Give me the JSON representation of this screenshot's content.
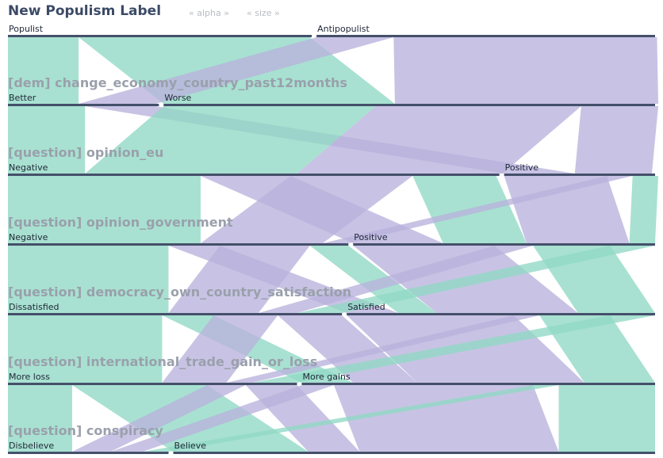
{
  "header": {
    "title": "New Populism Label",
    "sort_alpha": "« alpha »",
    "sort_size": "« size »"
  },
  "chart_data": {
    "type": "parallel_sets",
    "colors": {
      "Populist": "#8fd9c4",
      "Antipopulist": "#b9b2dc"
    },
    "dimensions": [
      {
        "name": "New Populism Label",
        "categories": [
          {
            "label": "Populist",
            "share": 0.473
          },
          {
            "label": "Antipopulist",
            "share": 0.527
          }
        ]
      },
      {
        "name": "[dem] change_economy_country_past12months",
        "categories": [
          {
            "label": "Better",
            "share": 0.235
          },
          {
            "label": "Worse",
            "share": 0.765
          }
        ]
      },
      {
        "name": "[question] opinion_eu",
        "categories": [
          {
            "label": "Negative",
            "share": 0.765
          },
          {
            "label": "Positive",
            "share": 0.235
          }
        ]
      },
      {
        "name": "[question] opinion_government",
        "categories": [
          {
            "label": "Negative",
            "share": 0.53
          },
          {
            "label": "Positive",
            "share": 0.47
          }
        ]
      },
      {
        "name": "[question] democracy_own_country_satisfaction",
        "categories": [
          {
            "label": "Dissatisfied",
            "share": 0.52
          },
          {
            "label": "Satisfied",
            "share": 0.48
          }
        ]
      },
      {
        "name": "[question] international_trade_gain_or_loss",
        "categories": [
          {
            "label": "More loss",
            "share": 0.45
          },
          {
            "label": "More gains",
            "share": 0.55
          }
        ]
      },
      {
        "name": "[question] conspiracy",
        "categories": [
          {
            "label": "Disbelieve",
            "share": 0.25
          },
          {
            "label": "Believe",
            "share": 0.75
          }
        ]
      }
    ],
    "ribbons": [
      {
        "from": [
          0,
          0
        ],
        "to": [
          1,
          0
        ],
        "value": 0.11,
        "color": "Populist"
      },
      {
        "from": [
          0,
          0
        ],
        "to": [
          1,
          1
        ],
        "value": 0.36,
        "color": "Populist"
      },
      {
        "from": [
          0,
          1
        ],
        "to": [
          1,
          0
        ],
        "value": 0.12,
        "color": "Antipopulist"
      },
      {
        "from": [
          0,
          1
        ],
        "to": [
          1,
          1
        ],
        "value": 0.41,
        "color": "Antipopulist"
      },
      {
        "from": [
          1,
          0
        ],
        "to": [
          2,
          0
        ],
        "value": 0.12,
        "color": "Populist"
      },
      {
        "from": [
          1,
          0
        ],
        "to": [
          2,
          1
        ],
        "value": 0.11,
        "color": "Antipopulist"
      },
      {
        "from": [
          1,
          1
        ],
        "to": [
          2,
          0
        ],
        "value": 0.33,
        "color": "Populist"
      },
      {
        "from": [
          1,
          1
        ],
        "to": [
          2,
          0
        ],
        "value": 0.32,
        "color": "Antipopulist"
      },
      {
        "from": [
          1,
          1
        ],
        "to": [
          2,
          1
        ],
        "value": 0.12,
        "color": "Antipopulist"
      },
      {
        "from": [
          2,
          0
        ],
        "to": [
          3,
          0
        ],
        "value": 0.3,
        "color": "Populist"
      },
      {
        "from": [
          2,
          0
        ],
        "to": [
          3,
          1
        ],
        "value": 0.14,
        "color": "Antipopulist"
      },
      {
        "from": [
          2,
          0
        ],
        "to": [
          3,
          0
        ],
        "value": 0.19,
        "color": "Antipopulist"
      },
      {
        "from": [
          2,
          0
        ],
        "to": [
          3,
          1
        ],
        "value": 0.13,
        "color": "Populist"
      },
      {
        "from": [
          2,
          1
        ],
        "to": [
          3,
          1
        ],
        "value": 0.16,
        "color": "Antipopulist"
      },
      {
        "from": [
          2,
          1
        ],
        "to": [
          3,
          0
        ],
        "value": 0.04,
        "color": "Antipopulist"
      },
      {
        "from": [
          2,
          1
        ],
        "to": [
          3,
          1
        ],
        "value": 0.04,
        "color": "Populist"
      },
      {
        "from": [
          3,
          0
        ],
        "to": [
          4,
          0
        ],
        "value": 0.25,
        "color": "Populist"
      },
      {
        "from": [
          3,
          0
        ],
        "to": [
          4,
          1
        ],
        "value": 0.08,
        "color": "Antipopulist"
      },
      {
        "from": [
          3,
          0
        ],
        "to": [
          4,
          0
        ],
        "value": 0.14,
        "color": "Antipopulist"
      },
      {
        "from": [
          3,
          0
        ],
        "to": [
          4,
          1
        ],
        "value": 0.06,
        "color": "Populist"
      },
      {
        "from": [
          3,
          1
        ],
        "to": [
          4,
          1
        ],
        "value": 0.22,
        "color": "Antipopulist"
      },
      {
        "from": [
          3,
          1
        ],
        "to": [
          4,
          0
        ],
        "value": 0.06,
        "color": "Antipopulist"
      },
      {
        "from": [
          3,
          1
        ],
        "to": [
          4,
          1
        ],
        "value": 0.12,
        "color": "Populist"
      },
      {
        "from": [
          3,
          1
        ],
        "to": [
          4,
          0
        ],
        "value": 0.07,
        "color": "Populist"
      },
      {
        "from": [
          4,
          0
        ],
        "to": [
          5,
          0
        ],
        "value": 0.24,
        "color": "Populist"
      },
      {
        "from": [
          4,
          0
        ],
        "to": [
          5,
          1
        ],
        "value": 0.08,
        "color": "Populist"
      },
      {
        "from": [
          4,
          0
        ],
        "to": [
          5,
          0
        ],
        "value": 0.1,
        "color": "Antipopulist"
      },
      {
        "from": [
          4,
          0
        ],
        "to": [
          5,
          1
        ],
        "value": 0.1,
        "color": "Antipopulist"
      },
      {
        "from": [
          4,
          1
        ],
        "to": [
          5,
          1
        ],
        "value": 0.26,
        "color": "Antipopulist"
      },
      {
        "from": [
          4,
          1
        ],
        "to": [
          5,
          0
        ],
        "value": 0.04,
        "color": "Antipopulist"
      },
      {
        "from": [
          4,
          1
        ],
        "to": [
          5,
          1
        ],
        "value": 0.11,
        "color": "Populist"
      },
      {
        "from": [
          4,
          1
        ],
        "to": [
          5,
          0
        ],
        "value": 0.07,
        "color": "Populist"
      },
      {
        "from": [
          5,
          0
        ],
        "to": [
          6,
          0
        ],
        "value": 0.1,
        "color": "Populist"
      },
      {
        "from": [
          5,
          0
        ],
        "to": [
          6,
          1
        ],
        "value": 0.21,
        "color": "Populist"
      },
      {
        "from": [
          5,
          0
        ],
        "to": [
          6,
          0
        ],
        "value": 0.06,
        "color": "Antipopulist"
      },
      {
        "from": [
          5,
          0
        ],
        "to": [
          6,
          1
        ],
        "value": 0.08,
        "color": "Antipopulist"
      },
      {
        "from": [
          5,
          1
        ],
        "to": [
          6,
          0
        ],
        "value": 0.05,
        "color": "Antipopulist"
      },
      {
        "from": [
          5,
          1
        ],
        "to": [
          6,
          1
        ],
        "value": 0.31,
        "color": "Antipopulist"
      },
      {
        "from": [
          5,
          1
        ],
        "to": [
          6,
          0
        ],
        "value": 0.04,
        "color": "Populist"
      },
      {
        "from": [
          5,
          1
        ],
        "to": [
          6,
          1
        ],
        "value": 0.15,
        "color": "Populist"
      }
    ]
  }
}
